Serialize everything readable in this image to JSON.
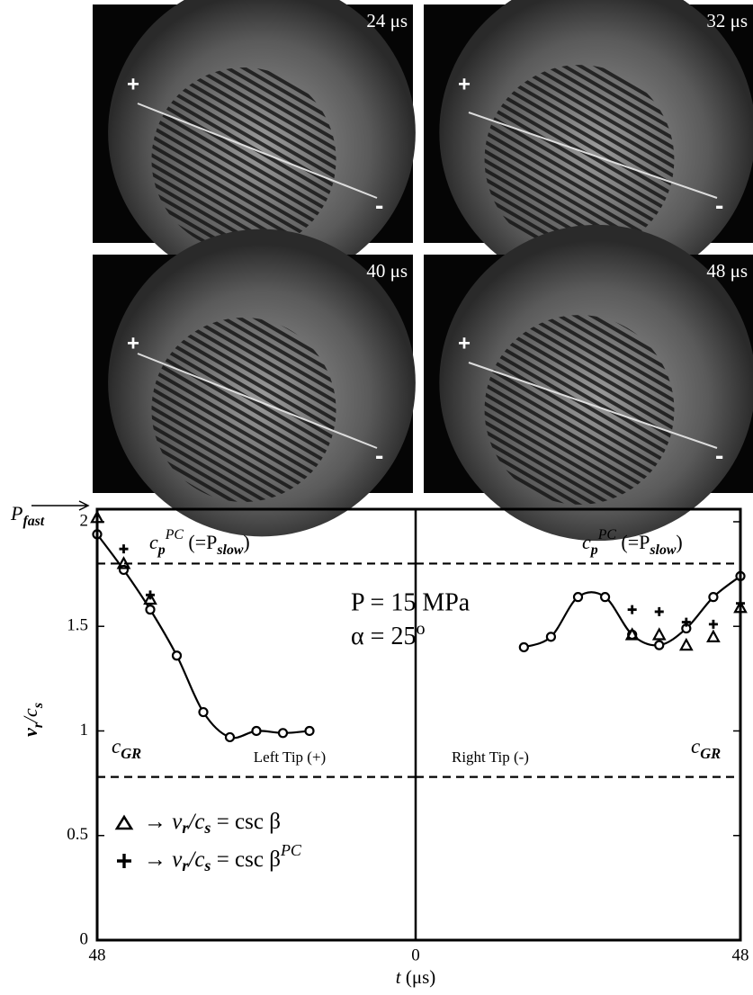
{
  "photos": [
    {
      "time": "24 μs",
      "plus": "+",
      "minus": "-"
    },
    {
      "time": "32 μs",
      "plus": "+",
      "minus": "-"
    },
    {
      "time": "40 μs",
      "plus": "+",
      "minus": "-"
    },
    {
      "time": "48 μs",
      "plus": "+",
      "minus": "-"
    }
  ],
  "chart_data": [
    {
      "type": "line",
      "xlim": [
        48,
        0
      ],
      "xticks": [
        48
      ],
      "ylim": [
        0,
        2.06
      ],
      "yticks": [
        0,
        0.5,
        1,
        1.5,
        2
      ],
      "ylabel": [
        "v",
        "r",
        "/c",
        "s"
      ],
      "xlabel": [
        "t",
        " (μs)"
      ],
      "hlines": [
        1.8,
        0.78
      ],
      "pfast": [
        "P",
        "fast"
      ],
      "cp_label": [
        "c",
        "p",
        "PC",
        " (=P",
        "slow",
        ")"
      ],
      "cgr_label": [
        "c",
        "GR"
      ],
      "params": [
        "P  = 15  MPa",
        "α  = 25",
        "o"
      ],
      "tip_label": "Left Tip (+)",
      "legend": [
        {
          "marker": "triangle",
          "text": [
            "→  ",
            "v",
            "r",
            "/c",
            "s",
            " = csc β"
          ]
        },
        {
          "marker": "cross",
          "text": [
            "→  ",
            "v",
            "r",
            "/c",
            "s",
            " = csc β",
            "PC"
          ]
        }
      ],
      "x": [
        48,
        44,
        40,
        36,
        32,
        28,
        24,
        20,
        16
      ],
      "series": [
        {
          "marker": "circle",
          "color": "#000000",
          "x": [
            48,
            44,
            40,
            36,
            32,
            28,
            24,
            20,
            16
          ],
          "values": [
            1.94,
            1.77,
            1.58,
            1.36,
            1.09,
            0.97,
            1.0,
            0.99,
            1.0
          ]
        },
        {
          "marker": "triangle",
          "color": "#000000",
          "x": [
            48,
            44,
            40
          ],
          "values": [
            2.02,
            1.8,
            1.63
          ]
        },
        {
          "marker": "cross",
          "color": "#000000",
          "x": [
            44,
            40
          ],
          "values": [
            1.87,
            1.65
          ]
        }
      ]
    },
    {
      "type": "line",
      "xlim": [
        0,
        48
      ],
      "xticks": [
        0,
        48
      ],
      "ylim": [
        0,
        2.06
      ],
      "hlines": [
        1.8,
        0.78
      ],
      "cp_label": [
        "c",
        "p",
        "PC",
        " (=P",
        "slow",
        ")"
      ],
      "cgr_label": [
        "c",
        "GR"
      ],
      "tip_label": "Right Tip (-)",
      "series": [
        {
          "marker": "circle",
          "color": "#000000",
          "x": [
            16,
            20,
            24,
            28,
            32,
            36,
            40,
            44,
            48
          ],
          "values": [
            1.4,
            1.45,
            1.64,
            1.64,
            1.46,
            1.41,
            1.49,
            1.64,
            1.74
          ]
        },
        {
          "marker": "triangle",
          "color": "#000000",
          "x": [
            32,
            36,
            40,
            44,
            48
          ],
          "values": [
            1.46,
            1.46,
            1.41,
            1.45,
            1.59
          ]
        },
        {
          "marker": "cross",
          "color": "#000000",
          "x": [
            32,
            36,
            40,
            44,
            48
          ],
          "values": [
            1.58,
            1.57,
            1.52,
            1.51,
            1.61
          ]
        }
      ]
    }
  ]
}
